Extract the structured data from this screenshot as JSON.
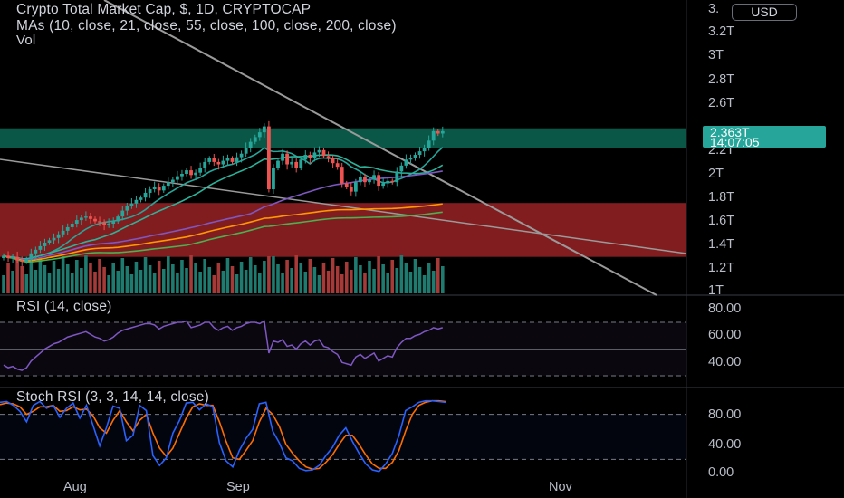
{
  "header": {
    "title": "Crypto Total Market Cap, $, 1D, CRYPTOCAP",
    "mas": "MAs (10, close, 21, close, 55, close, 100, close, 200, close)",
    "vol": "Vol"
  },
  "price_axis": {
    "currency": "USD",
    "top_partial": "3.",
    "labels": [
      "3.2T",
      "3T",
      "2.8T",
      "2.6T",
      "2.2T",
      "2T",
      "1.8T",
      "1.6T",
      "1.4T",
      "1.2T",
      "1T"
    ],
    "current_price": "2.363T",
    "countdown": "14:07:05"
  },
  "rsi_panel": {
    "title": "RSI (14, close)",
    "labels": [
      "80.00",
      "60.00",
      "40.00"
    ]
  },
  "stoch_panel": {
    "title": "Stoch RSI (3, 3, 14, 14, close)",
    "labels": [
      "80.00",
      "40.00",
      "0.00"
    ]
  },
  "time_axis": {
    "labels": [
      "Aug",
      "Sep",
      "Nov"
    ]
  },
  "colors": {
    "background": "#000000",
    "up": "#26a69a",
    "down": "#ef5350",
    "green_zone": "#0b5e4d",
    "red_zone": "#8c1f22",
    "rsi_line": "#7e57c2",
    "stoch_k": "#2962ff",
    "stoch_d": "#ff6d00",
    "trendline": "#9a9a9a"
  },
  "chart_data": {
    "type": "candlestick",
    "symbol": "CRYPTOCAP:TOTAL",
    "interval": "1D",
    "candles_close_trillions": [
      1.31,
      1.29,
      1.3,
      1.27,
      1.26,
      1.28,
      1.33,
      1.36,
      1.39,
      1.42,
      1.44,
      1.46,
      1.49,
      1.52,
      1.55,
      1.58,
      1.61,
      1.63,
      1.64,
      1.62,
      1.6,
      1.59,
      1.57,
      1.58,
      1.6,
      1.64,
      1.69,
      1.73,
      1.75,
      1.78,
      1.8,
      1.84,
      1.87,
      1.89,
      1.86,
      1.9,
      1.93,
      1.95,
      1.98,
      2.0,
      2.03,
      1.99,
      2.01,
      2.05,
      2.1,
      2.13,
      2.1,
      2.08,
      2.11,
      2.13,
      2.1,
      2.14,
      2.17,
      2.22,
      2.27,
      2.31,
      2.35,
      2.4,
      1.87,
      2.05,
      2.11,
      2.17,
      2.08,
      2.1,
      2.05,
      2.12,
      2.16,
      2.13,
      2.18,
      2.2,
      2.15,
      2.13,
      2.09,
      2.06,
      1.92,
      1.89,
      1.85,
      1.93,
      1.97,
      1.93,
      1.95,
      1.99,
      1.9,
      1.92,
      1.94,
      1.93,
      2.02,
      2.07,
      2.12,
      2.13,
      2.16,
      2.19,
      2.22,
      2.28,
      2.36,
      2.34,
      2.36
    ],
    "rsi": [
      38,
      36,
      37,
      35,
      34,
      36,
      41,
      44,
      47,
      50,
      52,
      54,
      55,
      57,
      59,
      60,
      61,
      62,
      63,
      61,
      59,
      58,
      56,
      57,
      59,
      62,
      64,
      65,
      66,
      67,
      68,
      69,
      69,
      68,
      65,
      67,
      68,
      69,
      70,
      70,
      71,
      66,
      67,
      68,
      70,
      70,
      66,
      64,
      66,
      67,
      64,
      66,
      67,
      69,
      70,
      70,
      69,
      71,
      47,
      56,
      55,
      57,
      52,
      53,
      50,
      54,
      56,
      53,
      56,
      57,
      52,
      51,
      48,
      46,
      40,
      39,
      38,
      44,
      46,
      43,
      45,
      47,
      41,
      43,
      45,
      44,
      51,
      55,
      58,
      58,
      60,
      61,
      63,
      64,
      66,
      65,
      66
    ],
    "stoch_k": [
      96,
      97,
      92,
      84,
      70,
      92,
      97,
      88,
      92,
      76,
      88,
      95,
      75,
      92,
      65,
      38,
      62,
      91,
      88,
      45,
      52,
      92,
      85,
      25,
      12,
      22,
      55,
      72,
      95,
      96,
      86,
      94,
      90,
      42,
      18,
      10,
      32,
      48,
      60,
      94,
      96,
      58,
      42,
      22,
      18,
      8,
      5,
      6,
      12,
      25,
      36,
      52,
      62,
      44,
      28,
      14,
      6,
      4,
      14,
      28,
      52,
      85,
      90,
      96,
      98,
      98,
      97,
      96
    ],
    "stoch_d": [
      93,
      95,
      94,
      90,
      80,
      84,
      90,
      90,
      92,
      84,
      85,
      90,
      86,
      87,
      78,
      62,
      55,
      72,
      85,
      70,
      58,
      72,
      80,
      55,
      35,
      24,
      35,
      55,
      75,
      90,
      94,
      92,
      92,
      70,
      44,
      22,
      20,
      32,
      45,
      70,
      88,
      80,
      64,
      40,
      28,
      18,
      10,
      7,
      8,
      16,
      26,
      40,
      52,
      52,
      40,
      26,
      14,
      8,
      8,
      16,
      32,
      58,
      80,
      92,
      96,
      98,
      98,
      97
    ],
    "moving_averages": [
      {
        "period": 10,
        "color": "#26a69a"
      },
      {
        "period": 21,
        "color": "#2bb39a"
      },
      {
        "period": 55,
        "color": "#7e57c2"
      },
      {
        "period": 100,
        "color": "#ff9800"
      },
      {
        "period": 200,
        "color": "#4caf50"
      }
    ],
    "zones": [
      {
        "type": "resistance",
        "from": 2.22,
        "to": 2.38,
        "color": "green"
      },
      {
        "type": "demand",
        "from": 1.3,
        "to": 1.75,
        "color": "red"
      }
    ],
    "rsi_bands": [
      70,
      50,
      30
    ],
    "stoch_bands": [
      80,
      20
    ]
  }
}
